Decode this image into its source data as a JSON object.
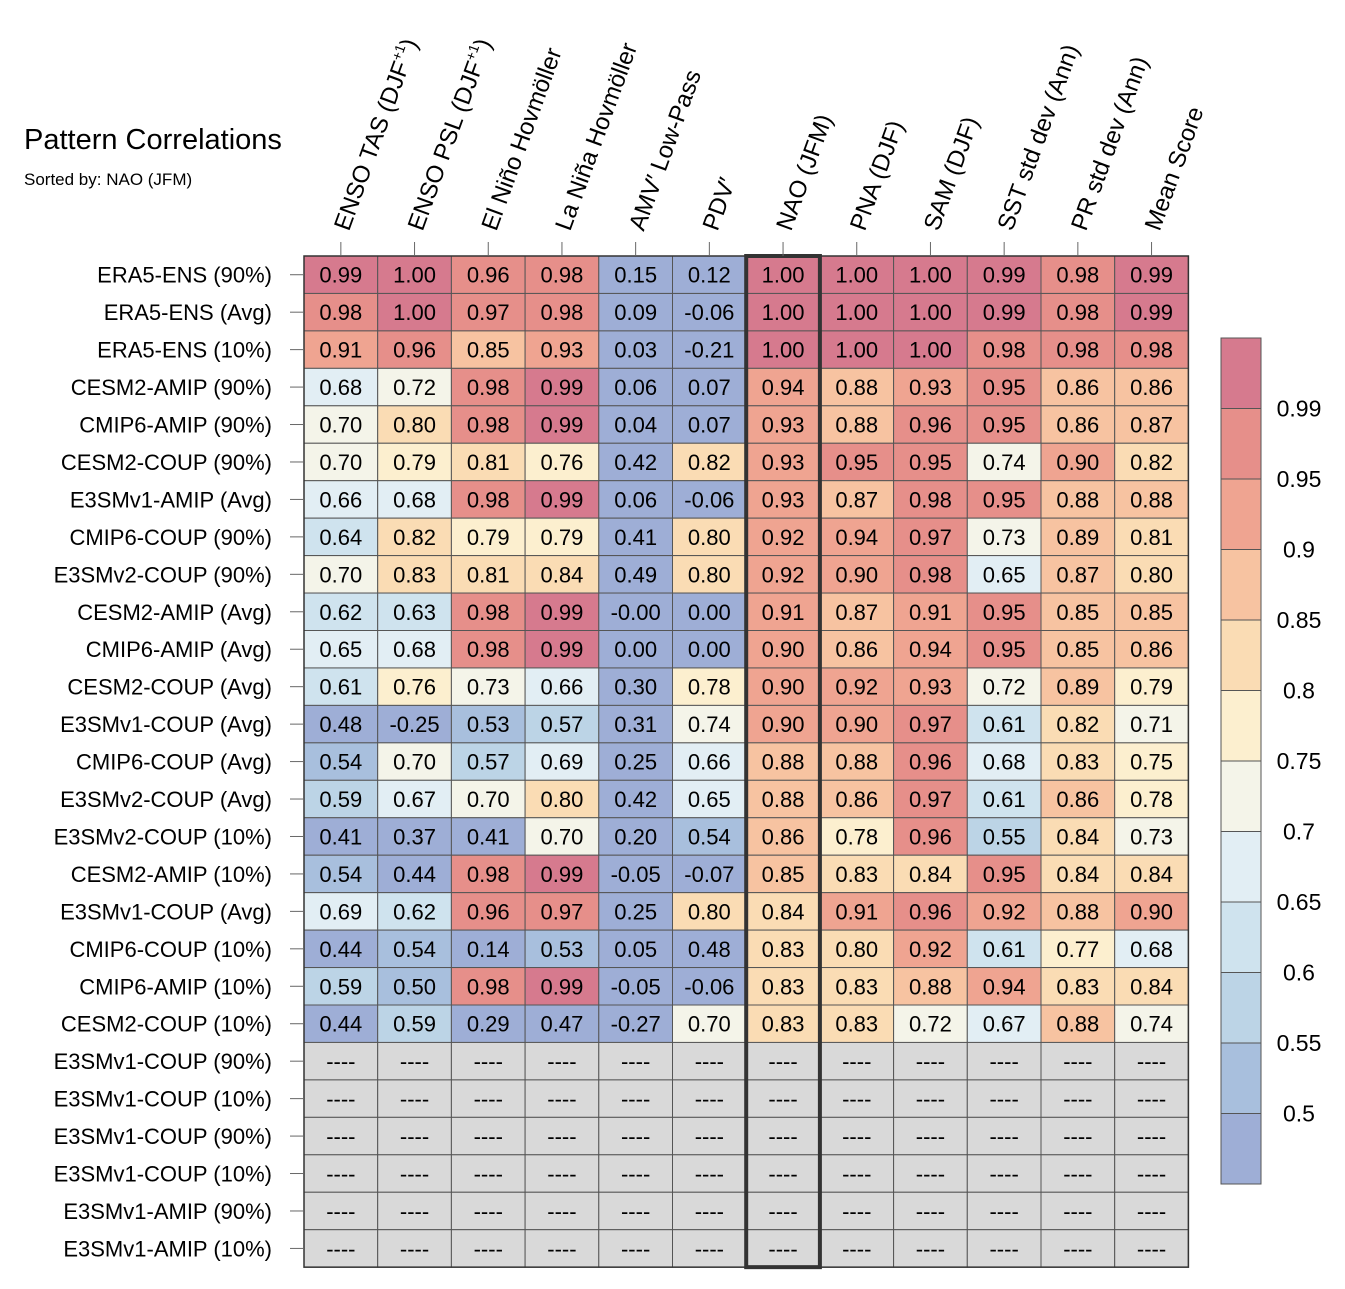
{
  "title": "Pattern Correlations",
  "subtitle": "Sorted by: NAO (JFM)",
  "chart_data": {
    "type": "heatmap",
    "title": "Pattern Correlations",
    "subtitle": "Sorted by: NAO (JFM)",
    "highlight_column": "NAO (JFM)",
    "columns": [
      {
        "pre": "ENSO TAS (DJF",
        "sup": "+1",
        "post": ")"
      },
      {
        "pre": "ENSO PSL (DJF",
        "sup": "+1",
        "post": ")"
      },
      {
        "pre": "El Niño Hovmöller"
      },
      {
        "pre": "La Niña Hovmöller"
      },
      {
        "pre": "AMV′ Low-Pass"
      },
      {
        "pre": "PDV′"
      },
      {
        "pre": "NAO (JFM)"
      },
      {
        "pre": "PNA (DJF)"
      },
      {
        "pre": "SAM (DJF)"
      },
      {
        "pre": "SST std dev (Ann)"
      },
      {
        "pre": "PR std dev (Ann)"
      },
      {
        "pre": "Mean Score"
      }
    ],
    "rows": [
      "ERA5-ENS (90%)",
      "ERA5-ENS (Avg)",
      "ERA5-ENS (10%)",
      "CESM2-AMIP (90%)",
      "CMIP6-AMIP (90%)",
      "CESM2-COUP (90%)",
      "E3SMv1-AMIP (Avg)",
      "CMIP6-COUP (90%)",
      "E3SMv2-COUP (90%)",
      "CESM2-AMIP (Avg)",
      "CMIP6-AMIP (Avg)",
      "CESM2-COUP (Avg)",
      "E3SMv1-COUP (Avg)",
      "CMIP6-COUP (Avg)",
      "E3SMv2-COUP (Avg)",
      "E3SMv2-COUP (10%)",
      "CESM2-AMIP (10%)",
      "E3SMv1-COUP (Avg)",
      "CMIP6-COUP (10%)",
      "CMIP6-AMIP (10%)",
      "CESM2-COUP (10%)",
      "E3SMv1-COUP (90%)",
      "E3SMv1-COUP (10%)",
      "E3SMv1-COUP (90%)",
      "E3SMv1-COUP (10%)",
      "E3SMv1-AMIP (90%)",
      "E3SMv1-AMIP (10%)"
    ],
    "values": [
      [
        "0.99",
        "1.00",
        "0.96",
        "0.98",
        "0.15",
        "0.12",
        "1.00",
        "1.00",
        "1.00",
        "0.99",
        "0.98",
        "0.99"
      ],
      [
        "0.98",
        "1.00",
        "0.97",
        "0.98",
        "0.09",
        "-0.06",
        "1.00",
        "1.00",
        "1.00",
        "0.99",
        "0.98",
        "0.99"
      ],
      [
        "0.91",
        "0.96",
        "0.85",
        "0.93",
        "0.03",
        "-0.21",
        "1.00",
        "1.00",
        "1.00",
        "0.98",
        "0.98",
        "0.98"
      ],
      [
        "0.68",
        "0.72",
        "0.98",
        "0.99",
        "0.06",
        "0.07",
        "0.94",
        "0.88",
        "0.93",
        "0.95",
        "0.86",
        "0.86"
      ],
      [
        "0.70",
        "0.80",
        "0.98",
        "0.99",
        "0.04",
        "0.07",
        "0.93",
        "0.88",
        "0.96",
        "0.95",
        "0.86",
        "0.87"
      ],
      [
        "0.70",
        "0.79",
        "0.81",
        "0.76",
        "0.42",
        "0.82",
        "0.93",
        "0.95",
        "0.95",
        "0.74",
        "0.90",
        "0.82"
      ],
      [
        "0.66",
        "0.68",
        "0.98",
        "0.99",
        "0.06",
        "-0.06",
        "0.93",
        "0.87",
        "0.98",
        "0.95",
        "0.88",
        "0.88"
      ],
      [
        "0.64",
        "0.82",
        "0.79",
        "0.79",
        "0.41",
        "0.80",
        "0.92",
        "0.94",
        "0.97",
        "0.73",
        "0.89",
        "0.81"
      ],
      [
        "0.70",
        "0.83",
        "0.81",
        "0.84",
        "0.49",
        "0.80",
        "0.92",
        "0.90",
        "0.98",
        "0.65",
        "0.87",
        "0.80"
      ],
      [
        "0.62",
        "0.63",
        "0.98",
        "0.99",
        "-0.00",
        "0.00",
        "0.91",
        "0.87",
        "0.91",
        "0.95",
        "0.85",
        "0.85"
      ],
      [
        "0.65",
        "0.68",
        "0.98",
        "0.99",
        "0.00",
        "0.00",
        "0.90",
        "0.86",
        "0.94",
        "0.95",
        "0.85",
        "0.86"
      ],
      [
        "0.61",
        "0.76",
        "0.73",
        "0.66",
        "0.30",
        "0.78",
        "0.90",
        "0.92",
        "0.93",
        "0.72",
        "0.89",
        "0.79"
      ],
      [
        "0.48",
        "-0.25",
        "0.53",
        "0.57",
        "0.31",
        "0.74",
        "0.90",
        "0.90",
        "0.97",
        "0.61",
        "0.82",
        "0.71"
      ],
      [
        "0.54",
        "0.70",
        "0.57",
        "0.69",
        "0.25",
        "0.66",
        "0.88",
        "0.88",
        "0.96",
        "0.68",
        "0.83",
        "0.75"
      ],
      [
        "0.59",
        "0.67",
        "0.70",
        "0.80",
        "0.42",
        "0.65",
        "0.88",
        "0.86",
        "0.97",
        "0.61",
        "0.86",
        "0.78"
      ],
      [
        "0.41",
        "0.37",
        "0.41",
        "0.70",
        "0.20",
        "0.54",
        "0.86",
        "0.78",
        "0.96",
        "0.55",
        "0.84",
        "0.73"
      ],
      [
        "0.54",
        "0.44",
        "0.98",
        "0.99",
        "-0.05",
        "-0.07",
        "0.85",
        "0.83",
        "0.84",
        "0.95",
        "0.84",
        "0.84"
      ],
      [
        "0.69",
        "0.62",
        "0.96",
        "0.97",
        "0.25",
        "0.80",
        "0.84",
        "0.91",
        "0.96",
        "0.92",
        "0.88",
        "0.90"
      ],
      [
        "0.44",
        "0.54",
        "0.14",
        "0.53",
        "0.05",
        "0.48",
        "0.83",
        "0.80",
        "0.92",
        "0.61",
        "0.77",
        "0.68"
      ],
      [
        "0.59",
        "0.50",
        "0.98",
        "0.99",
        "-0.05",
        "-0.06",
        "0.83",
        "0.83",
        "0.88",
        "0.94",
        "0.83",
        "0.84"
      ],
      [
        "0.44",
        "0.59",
        "0.29",
        "0.47",
        "-0.27",
        "0.70",
        "0.83",
        "0.83",
        "0.72",
        "0.67",
        "0.88",
        "0.74"
      ],
      [
        "----",
        "----",
        "----",
        "----",
        "----",
        "----",
        "----",
        "----",
        "----",
        "----",
        "----",
        "----"
      ],
      [
        "----",
        "----",
        "----",
        "----",
        "----",
        "----",
        "----",
        "----",
        "----",
        "----",
        "----",
        "----"
      ],
      [
        "----",
        "----",
        "----",
        "----",
        "----",
        "----",
        "----",
        "----",
        "----",
        "----",
        "----",
        "----"
      ],
      [
        "----",
        "----",
        "----",
        "----",
        "----",
        "----",
        "----",
        "----",
        "----",
        "----",
        "----",
        "----"
      ],
      [
        "----",
        "----",
        "----",
        "----",
        "----",
        "----",
        "----",
        "----",
        "----",
        "----",
        "----",
        "----"
      ],
      [
        "----",
        "----",
        "----",
        "----",
        "----",
        "----",
        "----",
        "----",
        "----",
        "----",
        "----",
        "----"
      ]
    ],
    "missing_color": "#d9d9d9",
    "colorbar": {
      "labels": [
        "0.99",
        "0.95",
        "0.9",
        "0.85",
        "0.8",
        "0.75",
        "0.7",
        "0.65",
        "0.6",
        "0.55",
        "0.5"
      ],
      "bins": [
        {
          "min": 0.99,
          "color": "#d67a8e"
        },
        {
          "min": 0.95,
          "color": "#e68f8a"
        },
        {
          "min": 0.9,
          "color": "#efa491"
        },
        {
          "min": 0.85,
          "color": "#f7c3a1"
        },
        {
          "min": 0.8,
          "color": "#fadcb4"
        },
        {
          "min": 0.75,
          "color": "#fcefcf"
        },
        {
          "min": 0.7,
          "color": "#f4f4e9"
        },
        {
          "min": 0.65,
          "color": "#e2eef4"
        },
        {
          "min": 0.6,
          "color": "#cfe3ee"
        },
        {
          "min": 0.55,
          "color": "#bcd4e6"
        },
        {
          "min": 0.5,
          "color": "#a8bfdd"
        },
        {
          "min": -9,
          "color": "#9eaed6"
        }
      ]
    }
  }
}
